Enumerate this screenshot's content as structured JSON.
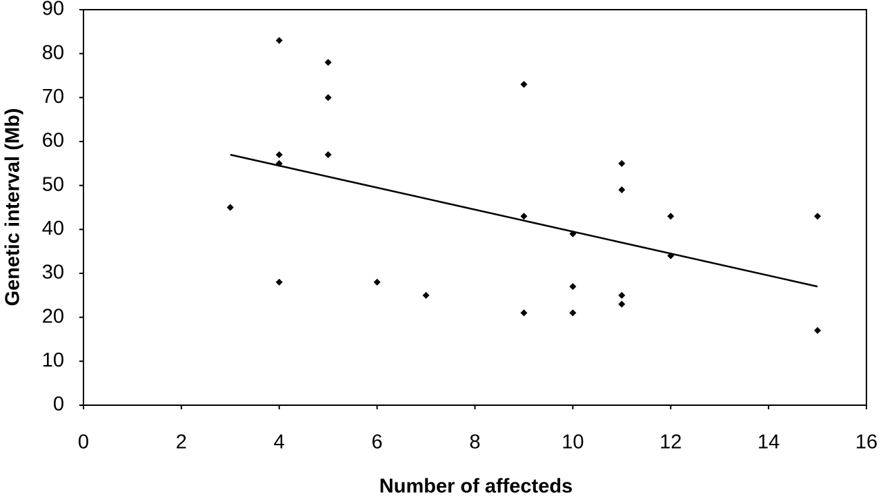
{
  "chart_data": {
    "type": "scatter",
    "x_label": "Number of affecteds",
    "y_label": "Genetic interval (Mb)",
    "x": [
      3,
      4,
      4,
      4,
      4,
      5,
      5,
      5,
      6,
      7,
      9,
      9,
      9,
      10,
      10,
      10,
      11,
      11,
      11,
      11,
      12,
      12,
      15,
      15
    ],
    "values": [
      45,
      83,
      57,
      55,
      28,
      78,
      70,
      57,
      28,
      25,
      73,
      43,
      21,
      39,
      27,
      21,
      55,
      49,
      25,
      23,
      43,
      34,
      43,
      17
    ],
    "color": "#000000",
    "trendline": {
      "x": [
        3,
        15
      ],
      "values": [
        57,
        27
      ],
      "color": "#000000"
    },
    "xlim": [
      0,
      16
    ],
    "xticks": [
      0,
      2,
      4,
      6,
      8,
      10,
      12,
      14,
      16
    ],
    "ylim": [
      0,
      90
    ],
    "yticks": [
      0,
      10,
      20,
      30,
      40,
      50,
      60,
      70,
      80,
      90
    ]
  }
}
